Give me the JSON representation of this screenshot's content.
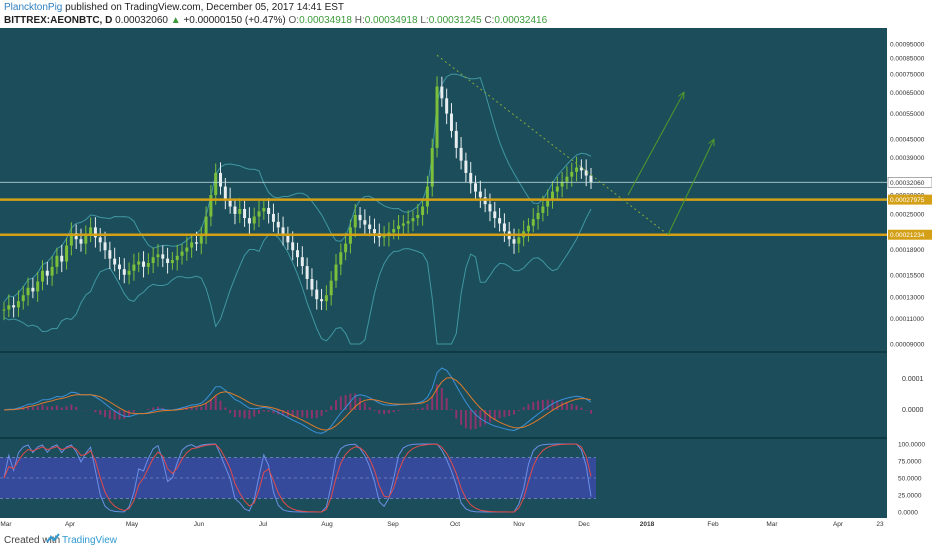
{
  "header": {
    "author": "PlancktonPig",
    "published": "published on TradingView.com, December 05, 2017 14:41 EST",
    "symbol": "BITTREX:AEONBTC, D",
    "last": "0.00032060",
    "change_arrow": "▲",
    "change": "+0.00000150 (+0.47%)",
    "open_label": "O:",
    "open": "0.00034918",
    "high_label": "H:",
    "high": "0.00034918",
    "low_label": "L:",
    "low": "0.00031245",
    "close_label": "C:",
    "close": "0.00032416"
  },
  "footer": {
    "created": "Created with",
    "brand": "TradingView"
  },
  "colors": {
    "background": "#1b4e5a",
    "up": "#7bbf3a",
    "down": "#e8eef0",
    "band": "#4aa9b5",
    "support": "#d4a017",
    "trend": "#86a83a",
    "target": "#4f9a2a",
    "macd": "#3b8fd9",
    "signal": "#e07a2a",
    "hist": "#a0306f",
    "stoch_k": "#6b8fe6",
    "stoch_d": "#e04a4a",
    "stoch_band": "#3b4aa8"
  },
  "chart_data": {
    "type": "candlestick",
    "x_ticks": [
      "Mar",
      "Apr",
      "May",
      "Jun",
      "Jul",
      "Aug",
      "Sep",
      "Oct",
      "Nov",
      "Dec",
      "2018",
      "Feb",
      "Mar",
      "Apr",
      "23"
    ],
    "price_axis": {
      "scale": "log",
      "ticks": [
        "0.00095000",
        "0.00085000",
        "0.00075000",
        "0.00065000",
        "0.00055000",
        "0.00045000",
        "0.00039000",
        "0.00032060",
        "0.00029000",
        "0.00027975",
        "0.00025000",
        "0.00021234",
        "0.00018900",
        "0.00015500",
        "0.00013000",
        "0.00011000",
        "0.00009000"
      ],
      "tick_values": [
        0.00095,
        0.00085,
        0.00075,
        0.00065,
        0.00055,
        0.00045,
        0.00039,
        0.0003206,
        0.00029,
        0.00027975,
        0.00025,
        0.00021234,
        0.000189,
        0.000155,
        0.00013,
        0.00011,
        9e-05
      ]
    },
    "levels": {
      "last_price": "0.00032060",
      "support_upper": "0.00027975",
      "support_lower": "0.00021234"
    },
    "price_series": [
      0.000118,
      0.000122,
      0.00012,
      0.000126,
      0.000132,
      0.00014,
      0.000136,
      0.000147,
      0.00016,
      0.000154,
      0.000165,
      0.00018,
      0.000172,
      0.000195,
      0.000215,
      0.000205,
      0.000198,
      0.000212,
      0.000225,
      0.000208,
      0.0002,
      0.000188,
      0.000176,
      0.000168,
      0.000162,
      0.000155,
      0.00016,
      0.000168,
      0.000172,
      0.000165,
      0.00017,
      0.000178,
      0.000182,
      0.000176,
      0.00017,
      0.000174,
      0.00018,
      0.000186,
      0.000192,
      0.0002,
      0.000198,
      0.00021,
      0.000245,
      0.00029,
      0.000345,
      0.00031,
      0.000282,
      0.000265,
      0.00025,
      0.00026,
      0.000242,
      0.000232,
      0.000245,
      0.000255,
      0.000262,
      0.00025,
      0.000235,
      0.000225,
      0.000212,
      0.0002,
      0.000188,
      0.000178,
      0.000166,
      0.00015,
      0.000138,
      0.000128,
      0.000126,
      0.000132,
      0.000148,
      0.000168,
      0.000185,
      0.000198,
      0.000225,
      0.000248,
      0.000238,
      0.00023,
      0.000222,
      0.000215,
      0.000208,
      0.00021,
      0.000216,
      0.000222,
      0.000228,
      0.000232,
      0.000236,
      0.000242,
      0.000248,
      0.000265,
      0.00031,
      0.00042,
      0.00068,
      0.00062,
      0.00055,
      0.00048,
      0.00042,
      0.00038,
      0.000345,
      0.000318,
      0.000298,
      0.000285,
      0.00027,
      0.000255,
      0.000242,
      0.000232,
      0.000218,
      0.000205,
      0.000198,
      0.000208,
      0.000218,
      0.000228,
      0.00024,
      0.000252,
      0.000265,
      0.000282,
      0.000298,
      0.00031,
      0.000322,
      0.000335,
      0.000348,
      0.00036,
      0.000352,
      0.000338,
      0.0003206
    ],
    "targets": [
      {
        "from": "0.00029",
        "to": "0.00065"
      },
      {
        "from": "0.00021234",
        "to": "0.00045"
      }
    ],
    "macd_axis_ticks": [
      "0.0001",
      "0.0000"
    ],
    "stoch_axis_ticks": [
      "100.0000",
      "75.0000",
      "50.0000",
      "25.0000",
      "0.0000"
    ],
    "stoch_band": [
      20,
      80
    ]
  }
}
